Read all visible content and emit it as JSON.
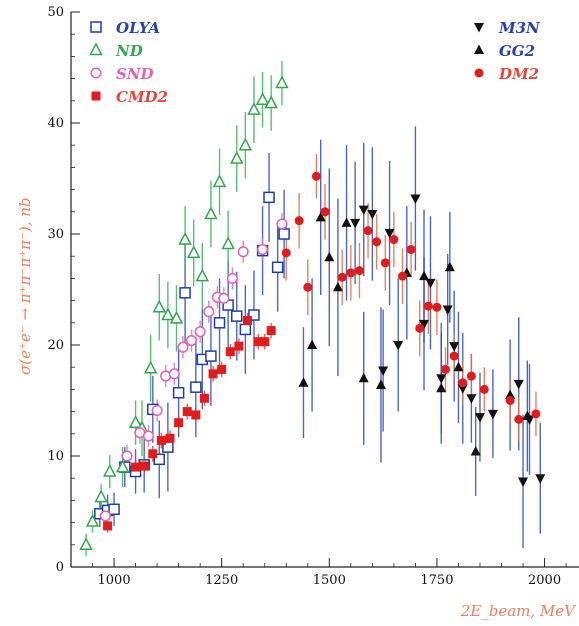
{
  "chart_data": {
    "type": "scatter",
    "xlabel": "2E_beam, MeV",
    "ylabel": "σ(e⁺e⁻ → π⁺π⁻π⁺π⁻), nb",
    "xlim": [
      900,
      2080
    ],
    "ylim": [
      0,
      50
    ],
    "x_ticks": [
      1000,
      1250,
      1500,
      1750,
      2000
    ],
    "y_ticks": [
      0,
      10,
      20,
      30,
      40,
      50
    ],
    "legend_placement": "top-left and top-right",
    "series": [
      {
        "name": "OLYA",
        "marker": "open-square",
        "color": "#1f3fa5",
        "points": [
          {
            "x": 967,
            "y": 4.8,
            "err": 1.2
          },
          {
            "x": 985,
            "y": 5.1,
            "err": 1.4
          },
          {
            "x": 1000,
            "y": 5.2,
            "err": 1.5
          },
          {
            "x": 1025,
            "y": 9.0,
            "err": 1.8
          },
          {
            "x": 1050,
            "y": 8.6,
            "err": 2.0
          },
          {
            "x": 1070,
            "y": 9.2,
            "err": 2.5
          },
          {
            "x": 1090,
            "y": 14.2,
            "err": 3.0
          },
          {
            "x": 1105,
            "y": 9.7,
            "err": 3.5
          },
          {
            "x": 1125,
            "y": 10.8,
            "err": 4.0
          },
          {
            "x": 1150,
            "y": 15.7,
            "err": 4.0
          },
          {
            "x": 1165,
            "y": 24.7,
            "err": 4.5
          },
          {
            "x": 1190,
            "y": 16.2,
            "err": 4.5
          },
          {
            "x": 1205,
            "y": 18.7,
            "err": 4.5
          },
          {
            "x": 1225,
            "y": 19.0,
            "err": 4.5
          },
          {
            "x": 1245,
            "y": 22.0,
            "err": 4.0
          },
          {
            "x": 1265,
            "y": 23.6,
            "err": 4.0
          },
          {
            "x": 1285,
            "y": 22.6,
            "err": 4.0
          },
          {
            "x": 1305,
            "y": 21.4,
            "err": 4.0
          },
          {
            "x": 1325,
            "y": 22.7,
            "err": 4.0
          },
          {
            "x": 1345,
            "y": 28.5,
            "err": 4.0
          },
          {
            "x": 1360,
            "y": 33.3,
            "err": 4.0
          },
          {
            "x": 1380,
            "y": 27.0,
            "err": 4.0
          },
          {
            "x": 1395,
            "y": 30.0,
            "err": 4.0
          }
        ]
      },
      {
        "name": "ND",
        "marker": "open-triangle",
        "color": "#2fa84f",
        "points": [
          {
            "x": 935,
            "y": 2.0,
            "err": 1.0
          },
          {
            "x": 950,
            "y": 4.1,
            "err": 1.0
          },
          {
            "x": 970,
            "y": 6.3,
            "err": 1.2
          },
          {
            "x": 990,
            "y": 8.6,
            "err": 1.5
          },
          {
            "x": 1020,
            "y": 9.0,
            "err": 1.8
          },
          {
            "x": 1050,
            "y": 13.0,
            "err": 2.0
          },
          {
            "x": 1065,
            "y": 12.5,
            "err": 2.5
          },
          {
            "x": 1085,
            "y": 17.9,
            "err": 3.0
          },
          {
            "x": 1105,
            "y": 23.4,
            "err": 3.0
          },
          {
            "x": 1125,
            "y": 22.7,
            "err": 3.0
          },
          {
            "x": 1145,
            "y": 22.4,
            "err": 3.0
          },
          {
            "x": 1165,
            "y": 29.5,
            "err": 3.0
          },
          {
            "x": 1185,
            "y": 28.3,
            "err": 3.0
          },
          {
            "x": 1205,
            "y": 26.2,
            "err": 3.0
          },
          {
            "x": 1225,
            "y": 31.8,
            "err": 3.0
          },
          {
            "x": 1245,
            "y": 34.7,
            "err": 3.0
          },
          {
            "x": 1265,
            "y": 29.1,
            "err": 3.0
          },
          {
            "x": 1285,
            "y": 36.8,
            "err": 3.0
          },
          {
            "x": 1305,
            "y": 38.0,
            "err": 3.0
          },
          {
            "x": 1325,
            "y": 41.2,
            "err": 3.0
          },
          {
            "x": 1345,
            "y": 42.1,
            "err": 2.5
          },
          {
            "x": 1365,
            "y": 41.8,
            "err": 2.5
          },
          {
            "x": 1390,
            "y": 43.6,
            "err": 2.0
          }
        ]
      },
      {
        "name": "SND",
        "marker": "open-circle",
        "color": "#e65fb3",
        "points": [
          {
            "x": 980,
            "y": 4.6,
            "err": 0.8
          },
          {
            "x": 1030,
            "y": 10.0,
            "err": 1.0
          },
          {
            "x": 1060,
            "y": 12.1,
            "err": 1.0
          },
          {
            "x": 1080,
            "y": 11.8,
            "err": 1.0
          },
          {
            "x": 1100,
            "y": 14.1,
            "err": 1.0
          },
          {
            "x": 1120,
            "y": 17.2,
            "err": 1.0
          },
          {
            "x": 1140,
            "y": 17.4,
            "err": 1.0
          },
          {
            "x": 1160,
            "y": 19.8,
            "err": 1.0
          },
          {
            "x": 1180,
            "y": 20.4,
            "err": 1.0
          },
          {
            "x": 1200,
            "y": 21.2,
            "err": 1.0
          },
          {
            "x": 1220,
            "y": 23.0,
            "err": 1.0
          },
          {
            "x": 1240,
            "y": 24.3,
            "err": 1.0
          },
          {
            "x": 1255,
            "y": 24.2,
            "err": 1.0
          },
          {
            "x": 1275,
            "y": 26.0,
            "err": 1.0
          },
          {
            "x": 1300,
            "y": 28.4,
            "err": 1.0
          },
          {
            "x": 1345,
            "y": 28.6,
            "err": 1.0
          },
          {
            "x": 1390,
            "y": 30.9,
            "err": 1.0
          }
        ]
      },
      {
        "name": "CMD2",
        "marker": "filled-square",
        "color": "#e31b1b",
        "points": [
          {
            "x": 985,
            "y": 3.7,
            "err": 0.6
          },
          {
            "x": 1050,
            "y": 9.0,
            "err": 0.7
          },
          {
            "x": 1070,
            "y": 9.1,
            "err": 0.7
          },
          {
            "x": 1090,
            "y": 10.2,
            "err": 0.7
          },
          {
            "x": 1110,
            "y": 11.4,
            "err": 0.7
          },
          {
            "x": 1130,
            "y": 11.6,
            "err": 0.7
          },
          {
            "x": 1150,
            "y": 13.0,
            "err": 0.7
          },
          {
            "x": 1170,
            "y": 14.0,
            "err": 0.7
          },
          {
            "x": 1190,
            "y": 13.7,
            "err": 0.7
          },
          {
            "x": 1210,
            "y": 15.2,
            "err": 0.7
          },
          {
            "x": 1230,
            "y": 17.4,
            "err": 0.7
          },
          {
            "x": 1250,
            "y": 17.8,
            "err": 0.7
          },
          {
            "x": 1270,
            "y": 19.4,
            "err": 0.7
          },
          {
            "x": 1290,
            "y": 19.9,
            "err": 0.7
          },
          {
            "x": 1310,
            "y": 22.2,
            "err": 0.7
          },
          {
            "x": 1335,
            "y": 20.3,
            "err": 0.7
          },
          {
            "x": 1350,
            "y": 20.3,
            "err": 0.7
          },
          {
            "x": 1365,
            "y": 21.3,
            "err": 0.7
          }
        ]
      },
      {
        "name": "M3N",
        "marker": "filled-triangle-down",
        "color": "#111111",
        "points": [
          {
            "x": 1560,
            "y": 31.0,
            "err": 5.5
          },
          {
            "x": 1580,
            "y": 32.2,
            "err": 6.0
          },
          {
            "x": 1600,
            "y": 31.8,
            "err": 6.0
          },
          {
            "x": 1625,
            "y": 17.7,
            "err": 5.5
          },
          {
            "x": 1640,
            "y": 30.1,
            "err": 6.5
          },
          {
            "x": 1660,
            "y": 20.0,
            "err": 6.0
          },
          {
            "x": 1700,
            "y": 33.2,
            "err": 6.5
          },
          {
            "x": 1720,
            "y": 21.9,
            "err": 6.0
          },
          {
            "x": 1735,
            "y": 25.6,
            "err": 6.0
          },
          {
            "x": 1760,
            "y": 17.0,
            "err": 5.0
          },
          {
            "x": 1775,
            "y": 23.2,
            "err": 5.0
          },
          {
            "x": 1790,
            "y": 19.9,
            "err": 5.0
          },
          {
            "x": 1810,
            "y": 16.1,
            "err": 5.0
          },
          {
            "x": 1830,
            "y": 15.2,
            "err": 4.0
          },
          {
            "x": 1850,
            "y": 13.5,
            "err": 4.0
          },
          {
            "x": 1880,
            "y": 13.8,
            "err": 4.0
          },
          {
            "x": 1940,
            "y": 16.5,
            "err": 6.0
          },
          {
            "x": 1950,
            "y": 7.7,
            "err": 6.0
          },
          {
            "x": 1965,
            "y": 13.3,
            "err": 5.0
          },
          {
            "x": 1990,
            "y": 8.0,
            "err": 5.0
          }
        ]
      },
      {
        "name": "GG2",
        "marker": "filled-triangle-up",
        "color": "#111111",
        "points": [
          {
            "x": 1440,
            "y": 16.6,
            "err": 5.0
          },
          {
            "x": 1460,
            "y": 20.0,
            "err": 6.0
          },
          {
            "x": 1480,
            "y": 31.5,
            "err": 7.0
          },
          {
            "x": 1500,
            "y": 27.9,
            "err": 8.0
          },
          {
            "x": 1520,
            "y": 25.2,
            "err": 8.0
          },
          {
            "x": 1540,
            "y": 31.0,
            "err": 7.0
          },
          {
            "x": 1580,
            "y": 17.0,
            "err": 6.0
          },
          {
            "x": 1620,
            "y": 16.4,
            "err": 7.0
          },
          {
            "x": 1680,
            "y": 26.5,
            "err": 6.0
          },
          {
            "x": 1720,
            "y": 26.2,
            "err": 6.0
          },
          {
            "x": 1760,
            "y": 16.1,
            "err": 5.0
          },
          {
            "x": 1780,
            "y": 27.0,
            "err": 5.0
          },
          {
            "x": 1800,
            "y": 18.0,
            "err": 5.0
          },
          {
            "x": 1840,
            "y": 10.4,
            "err": 4.0
          },
          {
            "x": 1920,
            "y": 15.5,
            "err": 5.0
          },
          {
            "x": 1960,
            "y": 13.6,
            "err": 5.0
          }
        ]
      },
      {
        "name": "DM2",
        "marker": "filled-circle",
        "color": "#e31b1b",
        "points": [
          {
            "x": 1400,
            "y": 28.3,
            "err": 2.5
          },
          {
            "x": 1430,
            "y": 31.2,
            "err": 2.5
          },
          {
            "x": 1450,
            "y": 25.2,
            "err": 2.5
          },
          {
            "x": 1470,
            "y": 35.2,
            "err": 2.0
          },
          {
            "x": 1490,
            "y": 32.0,
            "err": 2.5
          },
          {
            "x": 1530,
            "y": 26.1,
            "err": 2.5
          },
          {
            "x": 1550,
            "y": 26.5,
            "err": 2.5
          },
          {
            "x": 1570,
            "y": 26.7,
            "err": 2.5
          },
          {
            "x": 1590,
            "y": 30.3,
            "err": 2.5
          },
          {
            "x": 1610,
            "y": 29.3,
            "err": 2.5
          },
          {
            "x": 1630,
            "y": 27.4,
            "err": 2.5
          },
          {
            "x": 1650,
            "y": 29.5,
            "err": 2.5
          },
          {
            "x": 1670,
            "y": 26.2,
            "err": 2.5
          },
          {
            "x": 1690,
            "y": 28.6,
            "err": 2.5
          },
          {
            "x": 1710,
            "y": 21.5,
            "err": 2.5
          },
          {
            "x": 1730,
            "y": 23.5,
            "err": 2.5
          },
          {
            "x": 1750,
            "y": 23.4,
            "err": 2.5
          },
          {
            "x": 1770,
            "y": 17.8,
            "err": 2.0
          },
          {
            "x": 1790,
            "y": 19.0,
            "err": 2.0
          },
          {
            "x": 1810,
            "y": 16.6,
            "err": 2.0
          },
          {
            "x": 1830,
            "y": 17.2,
            "err": 2.0
          },
          {
            "x": 1860,
            "y": 16.0,
            "err": 2.0
          },
          {
            "x": 1920,
            "y": 15.0,
            "err": 2.0
          },
          {
            "x": 1940,
            "y": 13.3,
            "err": 2.0
          },
          {
            "x": 1980,
            "y": 13.8,
            "err": 2.0
          }
        ]
      }
    ]
  }
}
